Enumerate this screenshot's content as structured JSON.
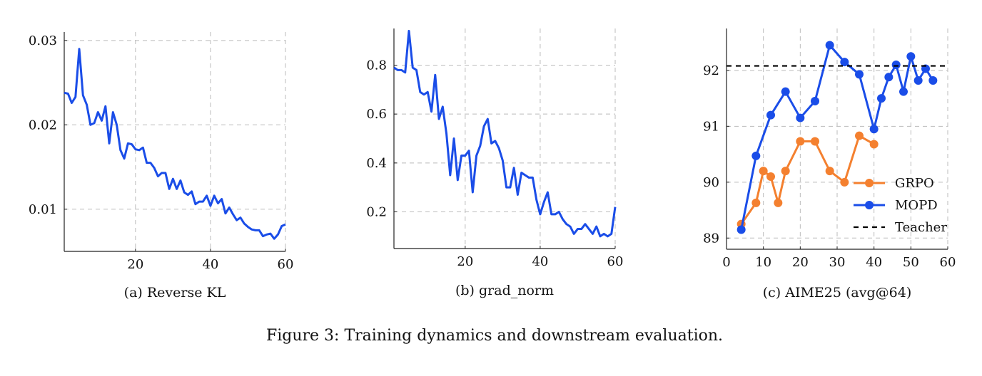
{
  "caption": "Figure 3: Training dynamics and downstream evaluation.",
  "chart_data": [
    {
      "type": "line",
      "title": "(a) Reverse KL",
      "color": "#1a4de8",
      "grid": true,
      "x": [
        1,
        2,
        3,
        4,
        5,
        6,
        7,
        8,
        9,
        10,
        11,
        12,
        13,
        14,
        15,
        16,
        17,
        18,
        19,
        20,
        21,
        22,
        23,
        24,
        25,
        26,
        27,
        28,
        29,
        30,
        31,
        32,
        33,
        34,
        35,
        36,
        37,
        38,
        39,
        40,
        41,
        42,
        43,
        44,
        45,
        46,
        47,
        48,
        49,
        50,
        51,
        52,
        53,
        54,
        55,
        56,
        57,
        58,
        59,
        60
      ],
      "values": [
        0.0238,
        0.0237,
        0.0226,
        0.0233,
        0.029,
        0.0235,
        0.0224,
        0.02,
        0.0202,
        0.0215,
        0.0205,
        0.0222,
        0.0178,
        0.0215,
        0.02,
        0.017,
        0.016,
        0.0178,
        0.0177,
        0.0171,
        0.017,
        0.0173,
        0.0155,
        0.0155,
        0.0149,
        0.0139,
        0.0143,
        0.0143,
        0.0124,
        0.0136,
        0.0124,
        0.0134,
        0.012,
        0.0117,
        0.0121,
        0.0106,
        0.0109,
        0.0109,
        0.0116,
        0.0104,
        0.0116,
        0.0107,
        0.0112,
        0.0095,
        0.0102,
        0.0094,
        0.0087,
        0.009,
        0.0083,
        0.0079,
        0.0076,
        0.0075,
        0.0075,
        0.0068,
        0.007,
        0.0071,
        0.0065,
        0.007,
        0.008,
        0.0082
      ],
      "xlim": [
        1,
        60
      ],
      "xticks": [
        20,
        40,
        60
      ],
      "ylim": [
        0.005,
        0.031
      ],
      "yticks": [
        0.01,
        0.02,
        0.03
      ]
    },
    {
      "type": "line",
      "title": "(b) grad_norm",
      "color": "#1a4de8",
      "grid": true,
      "x": [
        1,
        2,
        3,
        4,
        5,
        6,
        7,
        8,
        9,
        10,
        11,
        12,
        13,
        14,
        15,
        16,
        17,
        18,
        19,
        20,
        21,
        22,
        23,
        24,
        25,
        26,
        27,
        28,
        29,
        30,
        31,
        32,
        33,
        34,
        35,
        36,
        37,
        38,
        39,
        40,
        41,
        42,
        43,
        44,
        45,
        46,
        47,
        48,
        49,
        50,
        51,
        52,
        53,
        54,
        55,
        56,
        57,
        58,
        59,
        60
      ],
      "values": [
        0.79,
        0.78,
        0.78,
        0.77,
        0.94,
        0.79,
        0.78,
        0.69,
        0.68,
        0.69,
        0.61,
        0.76,
        0.58,
        0.63,
        0.52,
        0.35,
        0.5,
        0.33,
        0.43,
        0.43,
        0.45,
        0.28,
        0.43,
        0.47,
        0.55,
        0.58,
        0.48,
        0.49,
        0.46,
        0.41,
        0.3,
        0.3,
        0.38,
        0.27,
        0.36,
        0.35,
        0.34,
        0.34,
        0.25,
        0.19,
        0.24,
        0.28,
        0.19,
        0.19,
        0.2,
        0.17,
        0.15,
        0.14,
        0.11,
        0.13,
        0.13,
        0.15,
        0.13,
        0.11,
        0.14,
        0.1,
        0.11,
        0.1,
        0.11,
        0.22
      ],
      "xlim": [
        1,
        60
      ],
      "xticks": [
        20,
        40,
        60
      ],
      "ylim": [
        0.05,
        0.95
      ],
      "yticks": [
        0.2,
        0.4,
        0.6,
        0.8
      ]
    },
    {
      "type": "line",
      "title": "(c) AIME25 (avg@64)",
      "grid": true,
      "legend": "lower-right",
      "xlim": [
        0,
        60
      ],
      "xticks": [
        0,
        10,
        20,
        30,
        40,
        50,
        60
      ],
      "ylim": [
        88.8,
        92.75
      ],
      "yticks": [
        89,
        90,
        91,
        92
      ],
      "series": [
        {
          "name": "GRPO",
          "color": "#f4802f",
          "markers": true,
          "x": [
            4,
            8,
            10,
            12,
            14,
            16,
            20,
            24,
            28,
            32,
            36,
            40
          ],
          "values": [
            89.25,
            89.63,
            90.2,
            90.1,
            89.63,
            90.2,
            90.73,
            90.73,
            90.2,
            90.0,
            90.83,
            90.68
          ]
        },
        {
          "name": "MOPD",
          "color": "#1a4de8",
          "markers": true,
          "x": [
            4,
            8,
            12,
            16,
            20,
            24,
            28,
            32,
            36,
            40,
            42,
            44,
            46,
            48,
            50,
            52,
            54,
            56
          ],
          "values": [
            89.15,
            90.47,
            91.2,
            91.62,
            91.15,
            91.45,
            92.45,
            92.15,
            91.93,
            90.95,
            91.5,
            91.88,
            92.1,
            91.62,
            92.25,
            91.82,
            92.03,
            91.82
          ]
        },
        {
          "name": "Teacher",
          "color": "#000000",
          "dashed": true,
          "x": [
            0,
            60
          ],
          "values": [
            92.08,
            92.08
          ]
        }
      ]
    }
  ]
}
